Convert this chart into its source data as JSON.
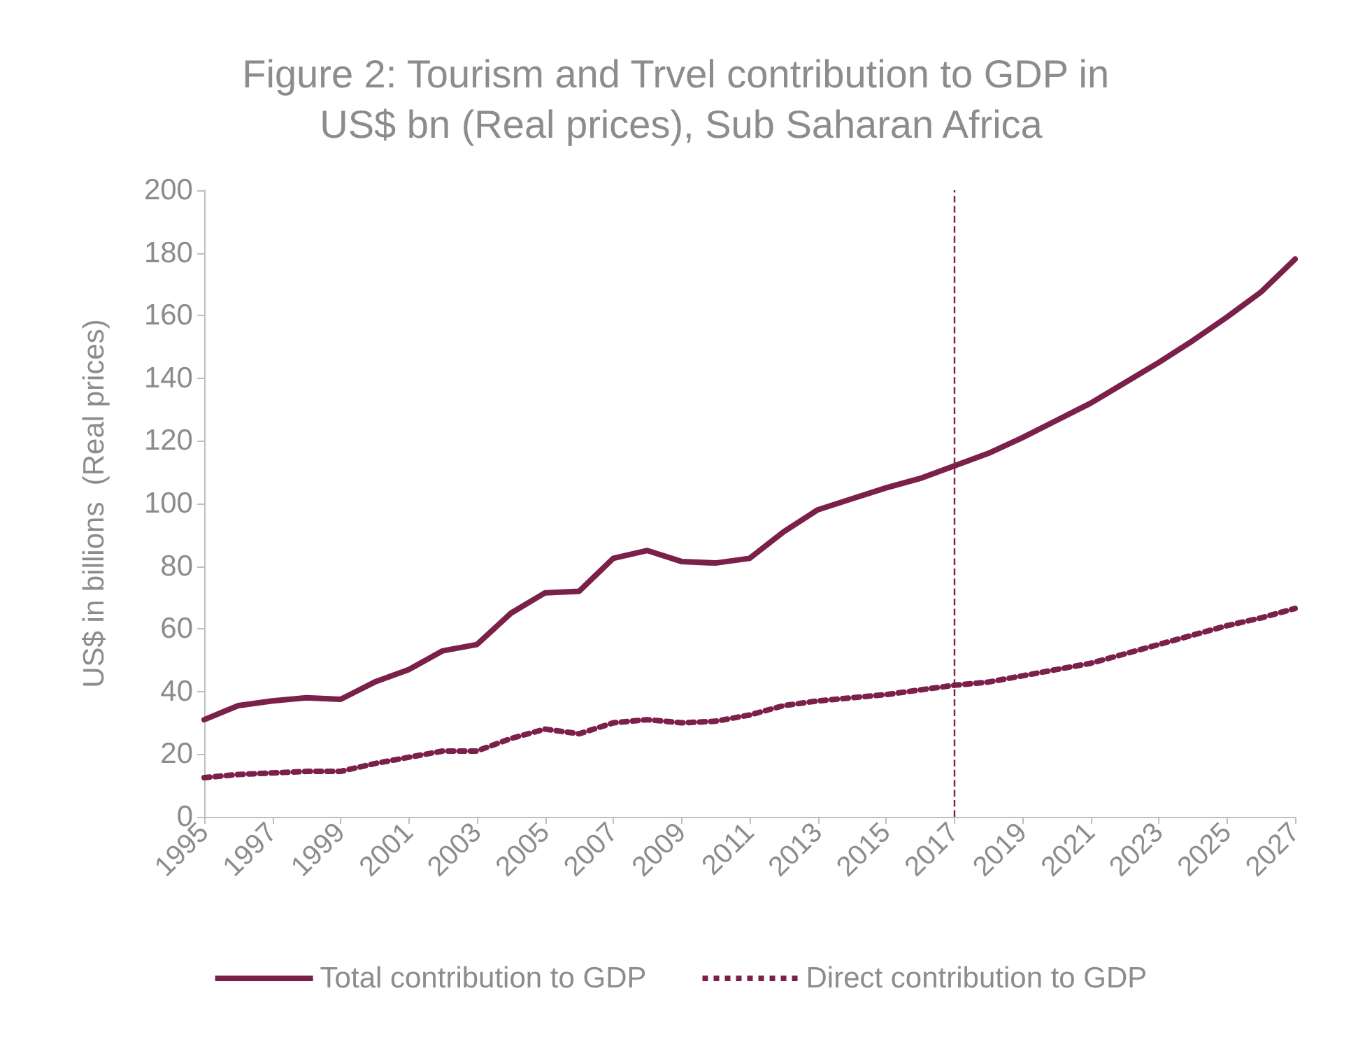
{
  "chart_data": {
    "type": "line",
    "title": "Figure 2: Tourism and Trvel contribution to GDP in US$ bn (Real prices), Sub Saharan Africa",
    "ylabel": "US$ in billions  (Real prices)",
    "x": [
      1995,
      1996,
      1997,
      1998,
      1999,
      2000,
      2001,
      2002,
      2003,
      2004,
      2005,
      2006,
      2007,
      2008,
      2009,
      2010,
      2011,
      2012,
      2013,
      2014,
      2015,
      2016,
      2017,
      2018,
      2019,
      2020,
      2021,
      2022,
      2023,
      2024,
      2025,
      2026,
      2027
    ],
    "series": [
      {
        "name": "Total contribution to GDP",
        "color": "#7b1f4b",
        "line_style": "solid",
        "values": [
          31,
          35.5,
          37,
          38,
          37.5,
          43,
          47,
          53,
          55,
          65,
          71.5,
          72,
          82.5,
          85,
          81.5,
          81,
          82.5,
          91,
          98,
          101.5,
          105,
          108,
          112,
          116,
          121,
          126.5,
          132,
          138.5,
          145,
          152,
          159.5,
          167.5,
          178
        ]
      },
      {
        "name": "Direct contribution to GDP",
        "color": "#7b1f4b",
        "line_style": "dotted",
        "values": [
          12.5,
          13.5,
          14,
          14.5,
          14.5,
          17,
          19,
          21,
          21,
          25,
          28,
          26.5,
          30,
          31,
          30,
          30.5,
          32.5,
          35.5,
          37,
          38,
          39,
          40.5,
          42,
          43,
          45,
          47,
          49,
          52,
          55,
          58,
          61,
          63.5,
          66.5
        ]
      }
    ],
    "xlim": [
      1995,
      2027
    ],
    "xticks": [
      1995,
      1997,
      1999,
      2001,
      2003,
      2005,
      2007,
      2009,
      2011,
      2013,
      2015,
      2017,
      2019,
      2021,
      2023,
      2025,
      2027
    ],
    "ylim": [
      0,
      200
    ],
    "yticks": [
      0,
      20,
      40,
      60,
      80,
      100,
      120,
      140,
      160,
      180,
      200
    ],
    "ref_lines": [
      {
        "axis": "x",
        "value": 2017,
        "color": "#7b1f4b",
        "line_style": "dashed"
      }
    ],
    "grid": false,
    "legend": "bottom",
    "marker": "none"
  }
}
